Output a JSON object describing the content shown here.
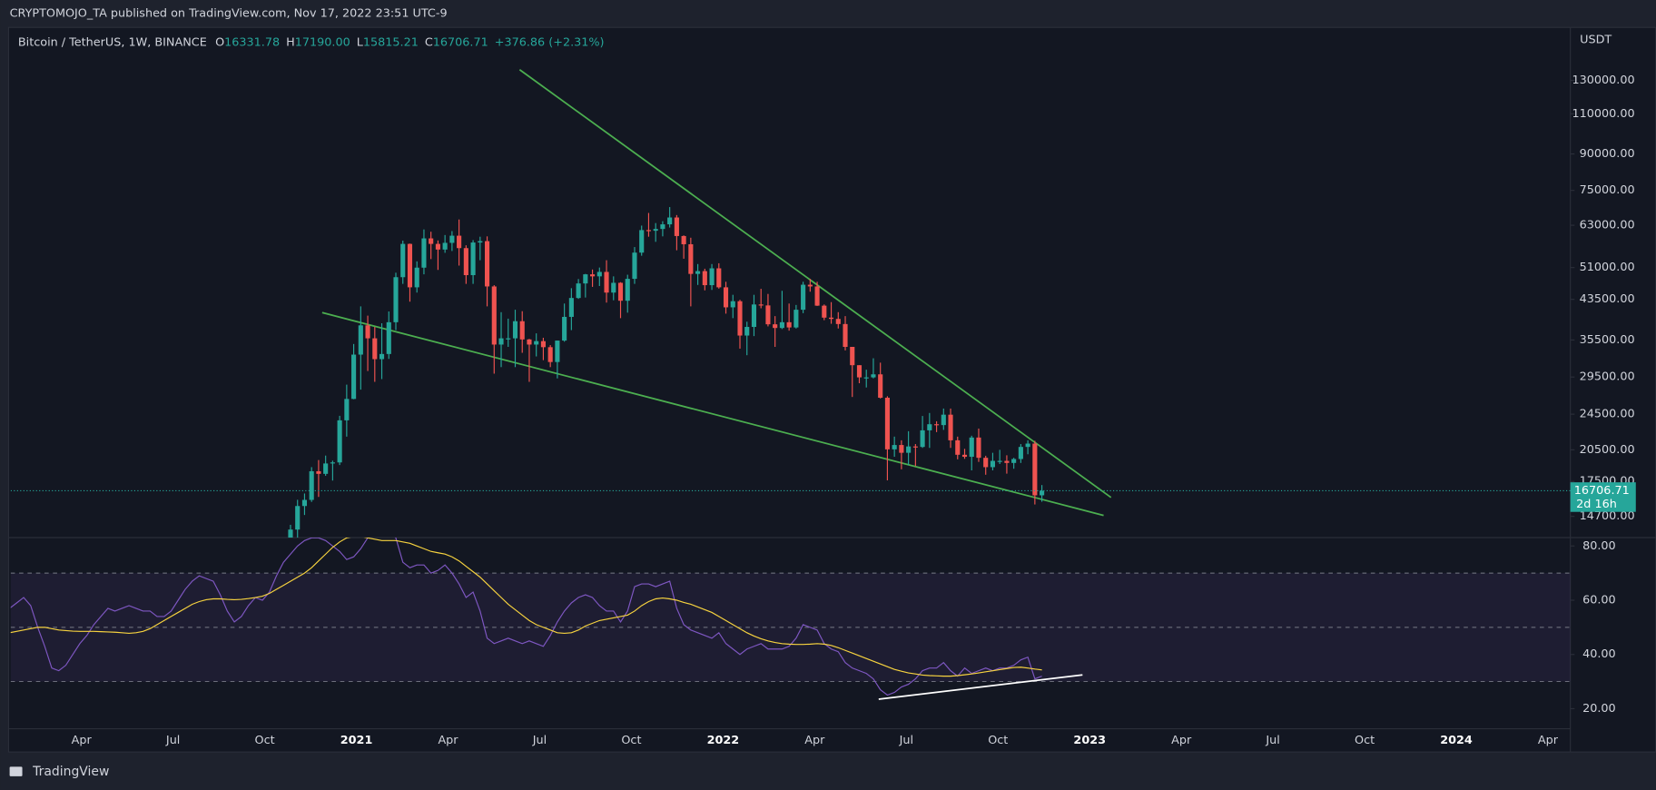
{
  "header": {
    "publisher": "CRYPTOMOJO_TA published on TradingView.com, Nov 17, 2022 23:51 UTC-9"
  },
  "footer": {
    "brand": "TradingView"
  },
  "time_axis": [
    "Apr",
    "Jul",
    "Oct",
    "2021",
    "Apr",
    "Jul",
    "Oct",
    "2022",
    "Apr",
    "Jul",
    "Oct",
    "2023",
    "Apr",
    "Jul",
    "Oct",
    "2024",
    "Apr"
  ],
  "chart_data": [
    {
      "type": "candlestick",
      "symbol": "Bitcoin / TetherUS, 1W, BINANCE",
      "ohlc_legend": [
        {
          "label": "O",
          "value": "16331.78"
        },
        {
          "label": "H",
          "value": "17190.00"
        },
        {
          "label": "L",
          "value": "15815.21"
        },
        {
          "label": "C",
          "value": "16706.71"
        }
      ],
      "change": "+376.86 (+2.31%)",
      "currency": "USDT",
      "log_scale": true,
      "ylim": [
        13220,
        167600
      ],
      "yticks": [
        {
          "value": 130000,
          "label": "130000.00"
        },
        {
          "value": 110000,
          "label": "110000.00"
        },
        {
          "value": 90000,
          "label": "90000.00"
        },
        {
          "value": 75000,
          "label": "75000.00"
        },
        {
          "value": 63000,
          "label": "63000.00"
        },
        {
          "value": 51000,
          "label": "51000.00"
        },
        {
          "value": 43500,
          "label": "43500.00"
        },
        {
          "value": 35500,
          "label": "35500.00"
        },
        {
          "value": 29500,
          "label": "29500.00"
        },
        {
          "value": 24500,
          "label": "24500.00"
        },
        {
          "value": 20500,
          "label": "20500.00"
        },
        {
          "value": 17500,
          "label": "17500.00"
        },
        {
          "value": 14700,
          "label": "14700.00"
        }
      ],
      "up_color": "#26a69a",
      "down_color": "#ef5350",
      "last_price": 16706.71,
      "countdown": "2d 16h",
      "candles": [
        [
          13031,
          14093,
          12980,
          13761
        ],
        [
          13761,
          15970,
          13200,
          15480
        ],
        [
          15480,
          16480,
          14800,
          15960
        ],
        [
          15960,
          18800,
          15800,
          18420
        ],
        [
          18420,
          19480,
          16200,
          18180
        ],
        [
          18180,
          19920,
          18000,
          19150
        ],
        [
          19150,
          19420,
          17580,
          19250
        ],
        [
          19250,
          24300,
          19000,
          23760
        ],
        [
          23760,
          28400,
          21900,
          26440
        ],
        [
          26440,
          34800,
          26400,
          33000
        ],
        [
          33000,
          42000,
          27700,
          38200
        ],
        [
          38200,
          40100,
          30400,
          35800
        ],
        [
          35800,
          37900,
          28800,
          32260
        ],
        [
          32260,
          38600,
          29200,
          33100
        ],
        [
          33100,
          40950,
          32300,
          38800
        ],
        [
          38800,
          49700,
          37300,
          48600
        ],
        [
          48600,
          58350,
          47000,
          57400
        ],
        [
          57400,
          57500,
          43000,
          46200
        ],
        [
          46200,
          52600,
          45000,
          50970
        ],
        [
          50970,
          61700,
          49300,
          59000
        ],
        [
          59000,
          61000,
          53200,
          57400
        ],
        [
          57400,
          58400,
          50400,
          55800
        ],
        [
          55800,
          60000,
          54900,
          57700
        ],
        [
          57700,
          61200,
          55400,
          59800
        ],
        [
          59800,
          64850,
          51500,
          56200
        ],
        [
          56200,
          57000,
          47000,
          49100
        ],
        [
          49100,
          58500,
          47000,
          57800
        ],
        [
          57800,
          59500,
          52900,
          58200
        ],
        [
          58200,
          59600,
          42000,
          46400
        ],
        [
          46400,
          46700,
          30000,
          34700
        ],
        [
          34700,
          40800,
          31000,
          35800
        ],
        [
          35800,
          39500,
          34300,
          35800
        ],
        [
          35800,
          41300,
          31000,
          39000
        ],
        [
          39000,
          41000,
          33300,
          35600
        ],
        [
          35600,
          35700,
          28800,
          34700
        ],
        [
          34700,
          36700,
          32700,
          35300
        ],
        [
          35300,
          35900,
          32100,
          34250
        ],
        [
          34250,
          34600,
          31000,
          31800
        ],
        [
          31800,
          35400,
          29300,
          35400
        ],
        [
          35400,
          42600,
          35200,
          39850
        ],
        [
          39850,
          46000,
          37300,
          43800
        ],
        [
          43800,
          48150,
          43600,
          47100
        ],
        [
          47100,
          49400,
          43900,
          49300
        ],
        [
          49300,
          50500,
          46300,
          48800
        ],
        [
          48800,
          51000,
          46500,
          49900
        ],
        [
          49900,
          52900,
          42800,
          45000
        ],
        [
          45000,
          48800,
          43300,
          47250
        ],
        [
          47250,
          47400,
          39600,
          43200
        ],
        [
          43200,
          49200,
          40700,
          48200
        ],
        [
          48200,
          56500,
          47000,
          54950
        ],
        [
          54950,
          62900,
          54100,
          61500
        ],
        [
          61500,
          67000,
          59500,
          61300
        ],
        [
          61300,
          63700,
          58000,
          61850
        ],
        [
          61850,
          64300,
          59600,
          63300
        ],
        [
          63300,
          69000,
          62300,
          65500
        ],
        [
          65500,
          66300,
          55600,
          59700
        ],
        [
          59700,
          59900,
          53300,
          57300
        ],
        [
          57300,
          59200,
          42000,
          49400
        ],
        [
          49400,
          51900,
          46750,
          50100
        ],
        [
          50100,
          50700,
          45500,
          46700
        ],
        [
          46700,
          51900,
          45600,
          50800
        ],
        [
          50800,
          52100,
          45900,
          46200
        ],
        [
          46200,
          47500,
          40500,
          41800
        ],
        [
          41800,
          44500,
          39600,
          43100
        ],
        [
          43100,
          43400,
          34000,
          36300
        ],
        [
          36300,
          38900,
          32900,
          37900
        ],
        [
          37900,
          44500,
          36200,
          42400
        ],
        [
          42400,
          45850,
          41600,
          42200
        ],
        [
          42200,
          44700,
          38000,
          38400
        ],
        [
          38400,
          40000,
          34300,
          37700
        ],
        [
          37700,
          45400,
          37500,
          38800
        ],
        [
          38800,
          42600,
          37200,
          37800
        ],
        [
          37800,
          42300,
          37600,
          41300
        ],
        [
          41300,
          47500,
          40600,
          46800
        ],
        [
          46800,
          48200,
          45200,
          46400
        ],
        [
          46400,
          47500,
          42100,
          42150
        ],
        [
          42150,
          42400,
          39200,
          39700
        ],
        [
          39700,
          42900,
          38500,
          39450
        ],
        [
          39450,
          40800,
          37600,
          38450
        ],
        [
          38450,
          40000,
          33700,
          34300
        ],
        [
          34300,
          34300,
          26700,
          31300
        ],
        [
          31300,
          31300,
          28600,
          29450
        ],
        [
          29450,
          30600,
          28000,
          29450
        ],
        [
          29450,
          32400,
          29300,
          29900
        ],
        [
          29900,
          31700,
          26500,
          26600
        ],
        [
          26600,
          26800,
          17600,
          20550
        ],
        [
          20550,
          21900,
          19800,
          21000
        ],
        [
          21000,
          21500,
          18600,
          20200
        ],
        [
          20200,
          22500,
          19000,
          20850
        ],
        [
          20850,
          21100,
          18900,
          20800
        ],
        [
          20800,
          24280,
          20700,
          22600
        ],
        [
          22600,
          24650,
          20700,
          23300
        ],
        [
          23300,
          23650,
          22400,
          23200
        ],
        [
          23200,
          25200,
          22650,
          24440
        ],
        [
          24440,
          25200,
          20700,
          21500
        ],
        [
          21500,
          21900,
          19550,
          20000
        ],
        [
          20000,
          20600,
          19600,
          19800
        ],
        [
          19800,
          22000,
          18500,
          21800
        ],
        [
          21800,
          22800,
          19300,
          19700
        ],
        [
          19700,
          19900,
          18100,
          18800
        ],
        [
          18800,
          20200,
          18500,
          19400
        ],
        [
          19400,
          20500,
          19100,
          19400
        ],
        [
          19400,
          19950,
          18200,
          19200
        ],
        [
          19200,
          19700,
          18650,
          19580
        ],
        [
          19580,
          21100,
          19200,
          20800
        ],
        [
          20800,
          21500,
          20050,
          21150
        ],
        [
          21150,
          21450,
          15600,
          16330
        ],
        [
          16331.78,
          17190,
          15815.21,
          16706.71
        ]
      ]
    },
    {
      "type": "line",
      "ylim": [
        12.6,
        83.1
      ],
      "yticks": [
        {
          "value": 80,
          "label": "80.00"
        },
        {
          "value": 60,
          "label": "60.00"
        },
        {
          "value": 40,
          "label": "40.00"
        },
        {
          "value": 20,
          "label": "20.00"
        }
      ],
      "hlines": [
        70,
        50,
        30
      ],
      "band_color": "#7e57c2",
      "series": [
        {
          "color": "#7e57c2",
          "values": [
            57,
            59,
            61,
            58,
            50,
            43,
            35,
            34,
            36,
            40,
            44,
            47,
            51,
            54,
            57,
            56,
            57,
            58,
            57,
            56,
            56,
            54,
            54,
            56,
            60,
            64,
            67,
            69,
            68,
            67,
            62,
            56,
            52,
            54,
            58,
            61,
            60,
            63,
            69,
            74,
            77,
            80,
            82,
            83,
            83,
            82,
            80,
            78,
            75,
            76,
            79,
            83,
            85,
            86,
            85,
            83,
            74,
            72,
            73,
            73,
            70,
            71,
            73,
            70,
            66,
            61,
            63,
            56,
            46,
            44,
            45,
            46,
            45,
            44,
            45,
            44,
            43,
            47,
            52,
            56,
            59,
            61,
            62,
            61,
            58,
            56,
            56,
            52,
            56,
            65,
            66,
            66,
            65,
            66,
            67,
            57,
            51,
            49,
            48,
            47,
            46,
            48,
            44,
            42,
            40,
            42,
            43,
            44,
            42,
            42,
            42,
            43,
            46,
            51,
            50,
            49,
            44,
            42,
            41,
            37,
            35,
            34,
            33,
            31,
            27,
            25,
            26,
            28,
            29,
            31,
            34,
            35,
            35,
            37,
            34,
            32,
            35,
            33,
            34,
            35,
            34,
            35,
            35,
            36,
            38,
            39,
            31,
            32
          ]
        },
        {
          "color": "#f7d33f",
          "values": [
            48,
            48.5,
            49,
            49.5,
            50,
            50,
            49.5,
            49,
            48.8,
            48.6,
            48.5,
            48.5,
            48.5,
            48.4,
            48.3,
            48.2,
            48,
            47.8,
            48,
            48.5,
            49.5,
            51,
            52.5,
            54,
            55.5,
            57,
            58.5,
            59.5,
            60.2,
            60.5,
            60.5,
            60.3,
            60.2,
            60.3,
            60.6,
            61,
            61.5,
            62.5,
            64,
            65.5,
            67,
            68.5,
            70,
            72,
            74.5,
            77,
            79.5,
            81.5,
            83,
            83.5,
            83.5,
            83,
            82.5,
            82,
            82,
            82,
            81.5,
            81,
            80,
            79,
            78,
            77.5,
            77,
            76,
            74.5,
            72.5,
            70.5,
            68.5,
            66,
            63.5,
            61,
            58.5,
            56.5,
            54.5,
            52.5,
            51,
            50,
            49,
            48,
            47.8,
            48,
            49,
            50.5,
            51.5,
            52.5,
            53,
            53.5,
            54,
            54.5,
            56,
            58,
            59.5,
            60.5,
            60.8,
            60.5,
            60,
            59.2,
            58.5,
            57.5,
            56.5,
            55.5,
            54,
            52.5,
            51,
            49.5,
            48,
            46.8,
            45.8,
            45,
            44.4,
            44,
            43.8,
            43.7,
            43.7,
            43.8,
            44,
            43.8,
            43.3,
            42.5,
            41.5,
            40.5,
            39.5,
            38.5,
            37.5,
            36.5,
            35.5,
            34.5,
            33.8,
            33.2,
            32.8,
            32.4,
            32.2,
            32.1,
            32,
            32,
            32.2,
            32.5,
            32.8,
            33.2,
            33.6,
            34,
            34.4,
            34.8,
            35.2,
            35.3,
            35,
            34.6,
            34.3
          ]
        }
      ]
    }
  ]
}
